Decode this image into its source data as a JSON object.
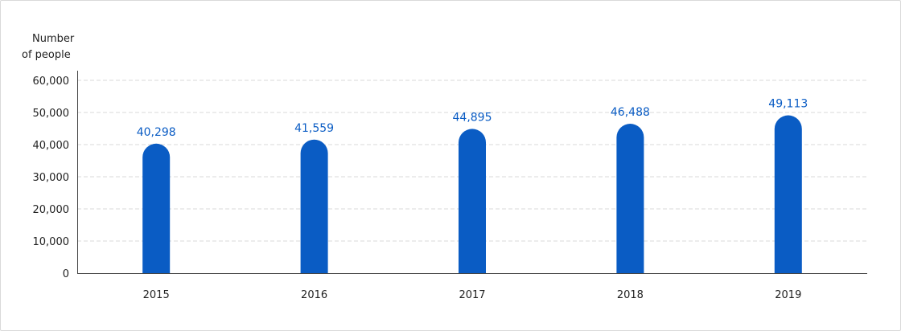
{
  "chart_data": {
    "type": "bar",
    "title": "",
    "ylabel_lines": [
      "Number",
      "of people"
    ],
    "categories": [
      "2015",
      "2016",
      "2017",
      "2018",
      "2019"
    ],
    "values": [
      40298,
      41559,
      44895,
      46488,
      49113
    ],
    "value_labels": [
      "40,298",
      "41,559",
      "44,895",
      "46,488",
      "49,113"
    ],
    "yticks": [
      0,
      10000,
      20000,
      30000,
      40000,
      50000,
      60000
    ],
    "ytick_labels": [
      "0",
      "10,000",
      "20,000",
      "30,000",
      "40,000",
      "50,000",
      "60,000"
    ],
    "ylim": [
      0,
      60000
    ],
    "grid": true,
    "bar_color": "#0a5cc4",
    "label_color": "#0a5cc4"
  }
}
